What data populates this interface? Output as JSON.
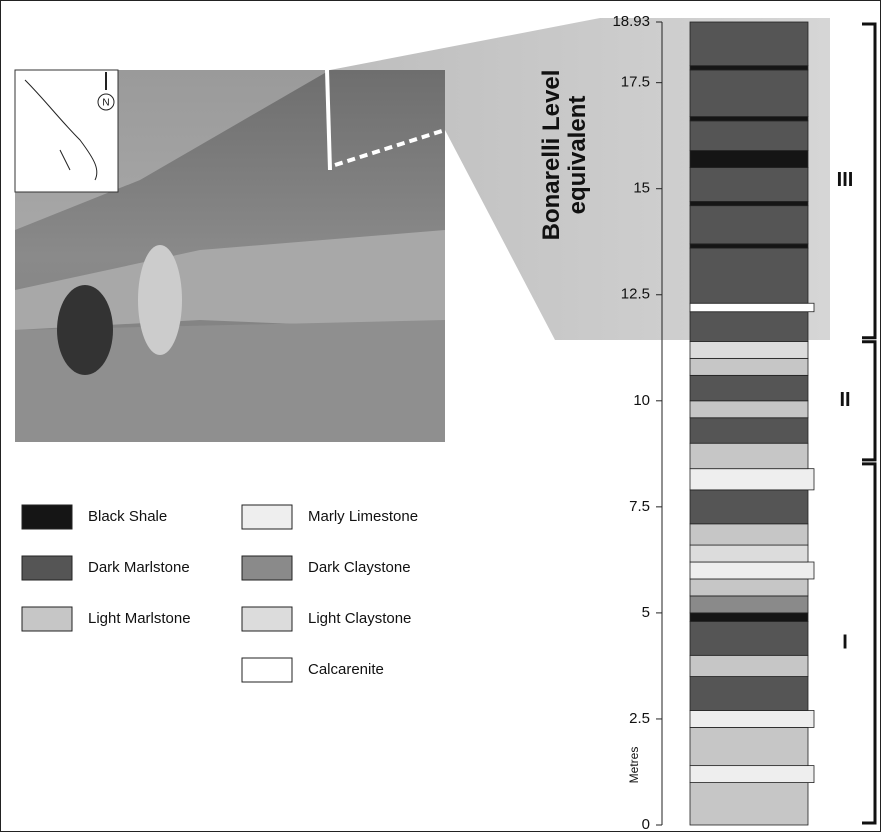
{
  "map_north": "N",
  "chart_data": {
    "type": "column",
    "y_label": "Metres",
    "ylim": [
      0,
      18.93
    ],
    "yticks": [
      0,
      2.5,
      5,
      7.5,
      10,
      12.5,
      15,
      17.5,
      18.93
    ],
    "annotation": [
      "Bonarelli Level",
      "equivalent"
    ],
    "annotation_range": [
      11.44,
      18.93
    ],
    "units": [
      {
        "label": "I",
        "base": 0,
        "top": 8.56
      },
      {
        "label": "II",
        "base": 8.56,
        "top": 11.44
      },
      {
        "label": "III",
        "base": 11.44,
        "top": 18.93
      }
    ],
    "legend": [
      {
        "name": "Black Shale",
        "color": "#151515"
      },
      {
        "name": "Dark Marlstone",
        "color": "#555555"
      },
      {
        "name": "Light Marlstone",
        "color": "#c6c6c6"
      },
      {
        "name": "Marly Limestone",
        "color": "#eeeeee"
      },
      {
        "name": "Dark Claystone",
        "color": "#8a8a8a"
      },
      {
        "name": "Light Claystone",
        "color": "#dcdcdc"
      },
      {
        "name": "Calcarenite",
        "color": "#ffffff"
      }
    ],
    "beds": [
      {
        "base": 0,
        "top": 1.0,
        "lithology": "Light Marlstone"
      },
      {
        "base": 1.0,
        "top": 1.4,
        "lithology": "Marly Limestone"
      },
      {
        "base": 1.4,
        "top": 2.3,
        "lithology": "Light Marlstone"
      },
      {
        "base": 2.3,
        "top": 2.7,
        "lithology": "Marly Limestone"
      },
      {
        "base": 2.7,
        "top": 3.5,
        "lithology": "Dark Marlstone"
      },
      {
        "base": 3.5,
        "top": 4.0,
        "lithology": "Light Marlstone"
      },
      {
        "base": 4.0,
        "top": 4.8,
        "lithology": "Dark Marlstone"
      },
      {
        "base": 4.8,
        "top": 5.0,
        "lithology": "Black Shale"
      },
      {
        "base": 5.0,
        "top": 5.4,
        "lithology": "Dark Claystone"
      },
      {
        "base": 5.4,
        "top": 5.8,
        "lithology": "Light Marlstone"
      },
      {
        "base": 5.8,
        "top": 6.2,
        "lithology": "Marly Limestone"
      },
      {
        "base": 6.2,
        "top": 6.6,
        "lithology": "Light Claystone"
      },
      {
        "base": 6.6,
        "top": 7.1,
        "lithology": "Light Marlstone"
      },
      {
        "base": 7.1,
        "top": 7.9,
        "lithology": "Dark Marlstone"
      },
      {
        "base": 7.9,
        "top": 8.4,
        "lithology": "Marly Limestone"
      },
      {
        "base": 8.4,
        "top": 9.0,
        "lithology": "Light Marlstone"
      },
      {
        "base": 9.0,
        "top": 9.6,
        "lithology": "Dark Marlstone"
      },
      {
        "base": 9.6,
        "top": 10.0,
        "lithology": "Light Marlstone"
      },
      {
        "base": 10.0,
        "top": 10.6,
        "lithology": "Dark Marlstone"
      },
      {
        "base": 10.6,
        "top": 11.0,
        "lithology": "Light Marlstone"
      },
      {
        "base": 11.0,
        "top": 11.4,
        "lithology": "Light Claystone"
      },
      {
        "base": 11.4,
        "top": 12.1,
        "lithology": "Dark Marlstone"
      },
      {
        "base": 12.1,
        "top": 12.3,
        "lithology": "Calcarenite"
      },
      {
        "base": 12.3,
        "top": 13.6,
        "lithology": "Dark Marlstone"
      },
      {
        "base": 13.6,
        "top": 13.7,
        "lithology": "Black Shale"
      },
      {
        "base": 13.7,
        "top": 14.6,
        "lithology": "Dark Marlstone"
      },
      {
        "base": 14.6,
        "top": 14.7,
        "lithology": "Black Shale"
      },
      {
        "base": 14.7,
        "top": 15.5,
        "lithology": "Dark Marlstone"
      },
      {
        "base": 15.5,
        "top": 15.9,
        "lithology": "Black Shale"
      },
      {
        "base": 15.9,
        "top": 16.6,
        "lithology": "Dark Marlstone"
      },
      {
        "base": 16.6,
        "top": 16.7,
        "lithology": "Black Shale"
      },
      {
        "base": 16.7,
        "top": 17.8,
        "lithology": "Dark Marlstone"
      },
      {
        "base": 17.8,
        "top": 17.9,
        "lithology": "Black Shale"
      },
      {
        "base": 17.9,
        "top": 18.93,
        "lithology": "Dark Marlstone"
      }
    ]
  }
}
